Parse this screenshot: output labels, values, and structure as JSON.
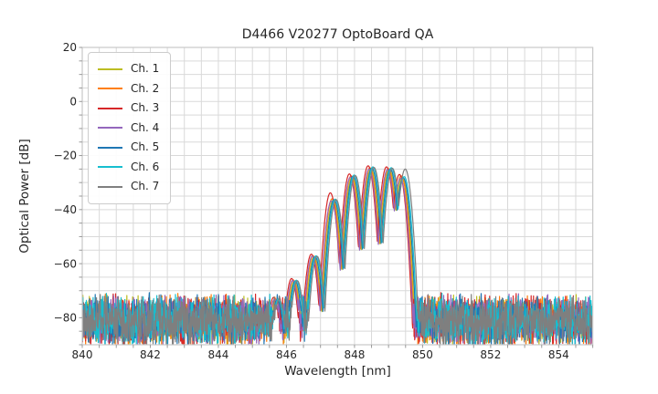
{
  "chart_data": {
    "type": "line",
    "title": "D4466 V20277 OptoBoard QA",
    "xlabel": "Wavelength [nm]",
    "ylabel": "Optical Power [dB]",
    "xlim": [
      840,
      855
    ],
    "ylim": [
      -90,
      20
    ],
    "xticks": [
      840,
      842,
      844,
      846,
      848,
      850,
      852,
      854
    ],
    "xtick_labels": [
      "840",
      "842",
      "844",
      "846",
      "848",
      "850",
      "852",
      "854"
    ],
    "yticks": [
      20,
      0,
      -20,
      -40,
      -60,
      -80
    ],
    "ytick_labels": [
      "20",
      "0",
      "−20",
      "−40",
      "−60",
      "−80"
    ],
    "grid": "on",
    "grid_minor_x_nm": 0.5,
    "grid_minor_y_db": 5,
    "legend_position": "upper left",
    "colors": {
      "grid": "#d9d9d9",
      "frame": "#c8c8c8",
      "tick": "#999999",
      "text": "#262626",
      "background": "#ffffff"
    },
    "mode_centers_nm": [
      845.7,
      846.23,
      846.81,
      847.37,
      847.93,
      848.48,
      849.02,
      849.4
    ],
    "mode_sigma_nm": 0.28,
    "mode_rolloff_db": 30,
    "noise": {
      "floor_mean_db": -81,
      "floor_spread_db": 10.5,
      "floor_top_db": -73
    },
    "series": [
      {
        "name": "Ch. 1",
        "color": "#bcbd22",
        "offset_nm": 0.0,
        "mode_peaks_db": [
          -73.5,
          -66.5,
          -57.5,
          -36.5,
          -27.8,
          -24.8,
          -25.0,
          -28.0
        ]
      },
      {
        "name": "Ch. 2",
        "color": "#ff7f0e",
        "offset_nm": -0.03,
        "mode_peaks_db": [
          -73.0,
          -66.0,
          -57.0,
          -36.0,
          -27.5,
          -24.5,
          -24.8,
          -27.5
        ]
      },
      {
        "name": "Ch. 3",
        "color": "#d62728",
        "offset_nm": -0.08,
        "mode_peaks_db": [
          -72.5,
          -65.5,
          -56.5,
          -33.8,
          -26.8,
          -23.8,
          -24.2,
          -27.0
        ]
      },
      {
        "name": "Ch. 4",
        "color": "#9467bd",
        "offset_nm": -0.05,
        "mode_peaks_db": [
          -73.2,
          -66.2,
          -57.2,
          -36.8,
          -28.0,
          -25.0,
          -25.2,
          -28.5
        ]
      },
      {
        "name": "Ch. 5",
        "color": "#1f77b4",
        "offset_nm": 0.03,
        "mode_peaks_db": [
          -73.4,
          -66.4,
          -57.4,
          -36.4,
          -27.6,
          -24.6,
          -24.9,
          -28.2
        ]
      },
      {
        "name": "Ch. 6",
        "color": "#17becf",
        "offset_nm": 0.06,
        "mode_peaks_db": [
          -73.1,
          -66.1,
          -57.1,
          -36.1,
          -27.2,
          -24.2,
          -24.5,
          -27.8
        ]
      },
      {
        "name": "Ch. 7",
        "color": "#7f7f7f",
        "offset_nm": 0.09,
        "mode_peaks_db": [
          -73.3,
          -66.3,
          -57.3,
          -36.3,
          -27.4,
          -24.4,
          -24.7,
          -25.0
        ]
      }
    ]
  }
}
